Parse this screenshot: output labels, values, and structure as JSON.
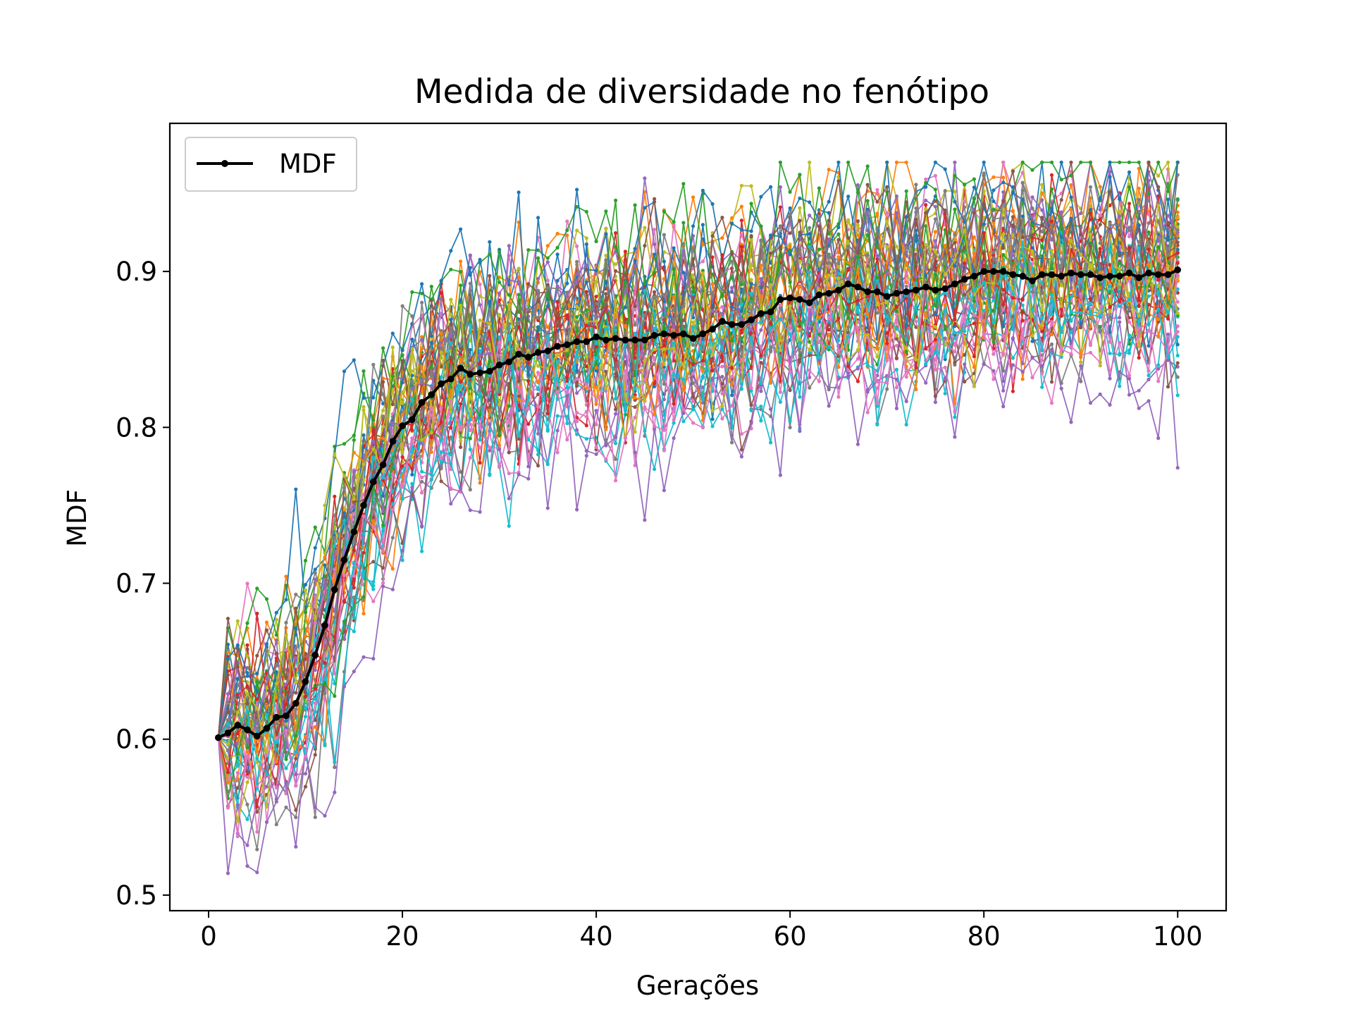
{
  "chart_data": {
    "type": "line",
    "title": "Medida de diversidade no fenótipo",
    "xlabel": "Gerações",
    "ylabel": "MDF",
    "xlim": [
      -4,
      105
    ],
    "ylim": [
      0.49,
      0.995
    ],
    "xticks": [
      0,
      20,
      40,
      60,
      80,
      100
    ],
    "xtick_labels": [
      "0",
      "20",
      "40",
      "60",
      "80",
      "100"
    ],
    "yticks": [
      0.5,
      0.6,
      0.7,
      0.8,
      0.9
    ],
    "ytick_labels": [
      "0.5",
      "0.6",
      "0.7",
      "0.8",
      "0.9"
    ],
    "legend": {
      "placement": "top-left",
      "entries": [
        "MDF"
      ]
    },
    "grid": false,
    "background_series": {
      "count": 50,
      "x_range": [
        1,
        100
      ],
      "start_value": 0.601,
      "min_value": 0.514,
      "max_value": 0.97,
      "end_range": [
        0.83,
        0.955
      ],
      "colors": [
        "#1f77b4",
        "#ff7f0e",
        "#2ca02c",
        "#d62728",
        "#9467bd",
        "#8c564b",
        "#e377c2",
        "#7f7f7f",
        "#bcbd22",
        "#17becf"
      ]
    },
    "series": [
      {
        "name": "MDF",
        "color": "#000000",
        "x": [
          1,
          2,
          3,
          4,
          5,
          6,
          7,
          8,
          9,
          10,
          11,
          12,
          13,
          14,
          15,
          16,
          17,
          18,
          19,
          20,
          21,
          22,
          23,
          24,
          25,
          26,
          27,
          28,
          29,
          30,
          31,
          32,
          33,
          34,
          35,
          36,
          37,
          38,
          39,
          40,
          41,
          42,
          43,
          44,
          45,
          46,
          47,
          48,
          49,
          50,
          51,
          52,
          53,
          54,
          55,
          56,
          57,
          58,
          59,
          60,
          61,
          62,
          63,
          64,
          65,
          66,
          67,
          68,
          69,
          70,
          71,
          72,
          73,
          74,
          75,
          76,
          77,
          78,
          79,
          80,
          81,
          82,
          83,
          84,
          85,
          86,
          87,
          88,
          89,
          90,
          91,
          92,
          93,
          94,
          95,
          96,
          97,
          98,
          99,
          100
        ],
        "y": [
          0.601,
          0.604,
          0.609,
          0.606,
          0.602,
          0.607,
          0.614,
          0.615,
          0.623,
          0.637,
          0.654,
          0.673,
          0.696,
          0.715,
          0.733,
          0.75,
          0.765,
          0.776,
          0.791,
          0.801,
          0.805,
          0.816,
          0.821,
          0.828,
          0.831,
          0.838,
          0.834,
          0.835,
          0.836,
          0.84,
          0.842,
          0.847,
          0.845,
          0.848,
          0.849,
          0.852,
          0.853,
          0.855,
          0.855,
          0.858,
          0.856,
          0.857,
          0.856,
          0.856,
          0.856,
          0.859,
          0.86,
          0.859,
          0.86,
          0.857,
          0.86,
          0.863,
          0.868,
          0.866,
          0.866,
          0.869,
          0.873,
          0.874,
          0.882,
          0.883,
          0.882,
          0.88,
          0.885,
          0.886,
          0.888,
          0.892,
          0.89,
          0.887,
          0.887,
          0.884,
          0.886,
          0.887,
          0.888,
          0.89,
          0.888,
          0.889,
          0.892,
          0.895,
          0.897,
          0.9,
          0.9,
          0.9,
          0.898,
          0.897,
          0.894,
          0.898,
          0.898,
          0.897,
          0.899,
          0.898,
          0.898,
          0.896,
          0.897,
          0.897,
          0.899,
          0.896,
          0.899,
          0.898,
          0.898,
          0.901
        ]
      }
    ]
  }
}
